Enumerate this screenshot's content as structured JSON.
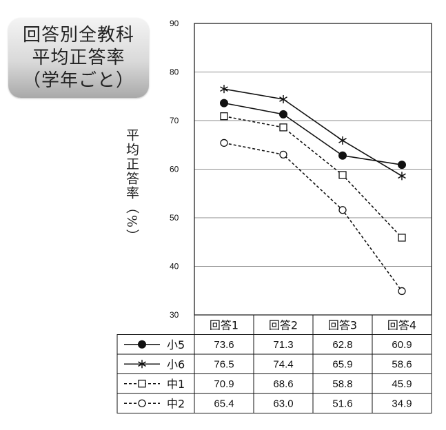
{
  "title": {
    "lines": [
      "回答別全教科",
      "平均正答率",
      "（学年ごと）"
    ]
  },
  "chart_data": {
    "type": "line",
    "ylabel": "平均正答率（%）",
    "xlabel": "",
    "categories": [
      "回答1",
      "回答2",
      "回答3",
      "回答4"
    ],
    "ylim": [
      30,
      90
    ],
    "yticks": [
      90,
      80,
      70,
      60,
      50,
      40,
      30
    ],
    "grid": true,
    "series": [
      {
        "name": "小5",
        "marker": "filled-circle",
        "line": "solid",
        "values": [
          73.6,
          71.3,
          62.8,
          60.9
        ],
        "labels": [
          "73.6",
          "71.3",
          "62.8",
          "60.9"
        ]
      },
      {
        "name": "小6",
        "marker": "asterisk",
        "line": "solid",
        "values": [
          76.5,
          74.4,
          65.9,
          58.6
        ],
        "labels": [
          "76.5",
          "74.4",
          "65.9",
          "58.6"
        ]
      },
      {
        "name": "中1",
        "marker": "open-square",
        "line": "dashed",
        "values": [
          70.9,
          68.6,
          58.8,
          45.9
        ],
        "labels": [
          "70.9",
          "68.6",
          "58.8",
          "45.9"
        ]
      },
      {
        "name": "中2",
        "marker": "open-circle",
        "line": "dashed",
        "values": [
          65.4,
          63.0,
          51.6,
          34.9
        ],
        "labels": [
          "65.4",
          "63.0",
          "51.6",
          "34.9"
        ]
      }
    ]
  }
}
